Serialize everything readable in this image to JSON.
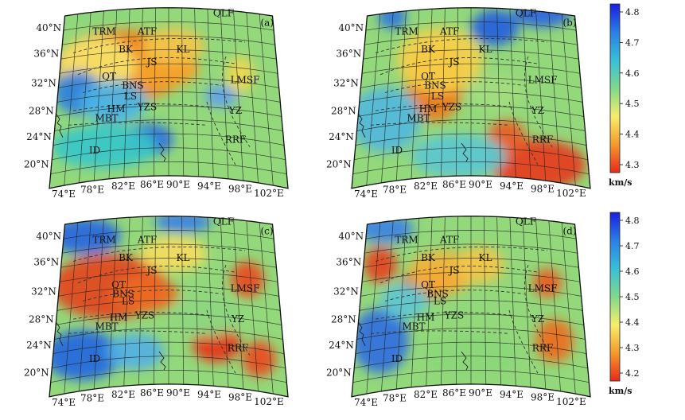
{
  "panels": [
    {
      "id": "a",
      "letter": "(a)",
      "colorbar": "top",
      "regions": [
        {
          "x": 33,
          "y": 33,
          "rx": 18,
          "ry": 14,
          "c": "#e12b1a"
        },
        {
          "x": 31,
          "y": 35,
          "rx": 28,
          "ry": 20,
          "c": "#f28a1b"
        },
        {
          "x": 47,
          "y": 37,
          "rx": 16,
          "ry": 10,
          "c": "#f4a32a"
        },
        {
          "x": 52,
          "y": 24,
          "rx": 13,
          "ry": 10,
          "c": "#f3c64a"
        },
        {
          "x": 20,
          "y": 34,
          "rx": 16,
          "ry": 15,
          "c": "#f7e46a"
        },
        {
          "x": 12,
          "y": 50,
          "rx": 10,
          "ry": 12,
          "c": "#2a7fe0"
        },
        {
          "x": 27,
          "y": 55,
          "rx": 14,
          "ry": 12,
          "c": "#4ab3e8"
        },
        {
          "x": 42,
          "y": 76,
          "rx": 10,
          "ry": 9,
          "c": "#2a6fe0"
        },
        {
          "x": 23,
          "y": 80,
          "rx": 22,
          "ry": 12,
          "c": "#38c7c9"
        },
        {
          "x": 20,
          "y": 4,
          "rx": 15,
          "ry": 7,
          "c": "#8ad77a"
        },
        {
          "x": 72,
          "y": 52,
          "rx": 7,
          "ry": 6,
          "c": "#5f9ff0"
        },
        {
          "x": 80,
          "y": 40,
          "rx": 6,
          "ry": 10,
          "c": "#f1d850"
        }
      ],
      "faults": [
        {
          "label": "TRM",
          "x": 23,
          "y": 16
        },
        {
          "label": "ATF",
          "x": 41,
          "y": 16
        },
        {
          "label": "QLF",
          "x": 73,
          "y": 6
        },
        {
          "label": "BK",
          "x": 32,
          "y": 26
        },
        {
          "label": "KL",
          "x": 56,
          "y": 26
        },
        {
          "label": "JS",
          "x": 43,
          "y": 33
        },
        {
          "label": "QT",
          "x": 25,
          "y": 41
        },
        {
          "label": "BNS",
          "x": 35,
          "y": 46
        },
        {
          "label": "LMSF",
          "x": 82,
          "y": 43
        },
        {
          "label": "LS",
          "x": 34,
          "y": 52
        },
        {
          "label": "YZS",
          "x": 41,
          "y": 58
        },
        {
          "label": "HM",
          "x": 28,
          "y": 59
        },
        {
          "label": "MBT",
          "x": 24,
          "y": 64
        },
        {
          "label": "YZ",
          "x": 78,
          "y": 60
        },
        {
          "label": "RRF",
          "x": 78,
          "y": 76
        },
        {
          "label": "ID",
          "x": 19,
          "y": 82
        }
      ]
    },
    {
      "id": "b",
      "letter": "(b)",
      "colorbar": "top",
      "regions": [
        {
          "x": 35,
          "y": 44,
          "rx": 12,
          "ry": 22,
          "c": "#f07a1a"
        },
        {
          "x": 37,
          "y": 32,
          "rx": 18,
          "ry": 18,
          "c": "#f6d04a"
        },
        {
          "x": 60,
          "y": 14,
          "rx": 10,
          "ry": 10,
          "c": "#2460de"
        },
        {
          "x": 80,
          "y": 6,
          "rx": 12,
          "ry": 8,
          "c": "#2c66df"
        },
        {
          "x": 17,
          "y": 8,
          "rx": 6,
          "ry": 7,
          "c": "#2a76de"
        },
        {
          "x": 78,
          "y": 90,
          "rx": 20,
          "ry": 14,
          "c": "#e6391d"
        },
        {
          "x": 65,
          "y": 75,
          "rx": 8,
          "ry": 10,
          "c": "#ec5b23"
        },
        {
          "x": 14,
          "y": 65,
          "rx": 15,
          "ry": 18,
          "c": "#53b9dc"
        },
        {
          "x": 45,
          "y": 85,
          "rx": 20,
          "ry": 12,
          "c": "#5bc7d0"
        },
        {
          "x": 60,
          "y": 50,
          "rx": 12,
          "ry": 10,
          "c": "#a3dc7e"
        }
      ],
      "faults": [
        {
          "label": "TRM",
          "x": 23,
          "y": 16
        },
        {
          "label": "ATF",
          "x": 41,
          "y": 16
        },
        {
          "label": "QLF",
          "x": 73,
          "y": 6
        },
        {
          "label": "BK",
          "x": 32,
          "y": 26
        },
        {
          "label": "KL",
          "x": 56,
          "y": 26
        },
        {
          "label": "JS",
          "x": 43,
          "y": 33
        },
        {
          "label": "QT",
          "x": 32,
          "y": 41
        },
        {
          "label": "BNS",
          "x": 35,
          "y": 46
        },
        {
          "label": "LMSF",
          "x": 80,
          "y": 43
        },
        {
          "label": "LS",
          "x": 36,
          "y": 52
        },
        {
          "label": "YZS",
          "x": 42,
          "y": 58
        },
        {
          "label": "HM",
          "x": 32,
          "y": 59
        },
        {
          "label": "MBT",
          "x": 28,
          "y": 64
        },
        {
          "label": "YZ",
          "x": 78,
          "y": 60
        },
        {
          "label": "RRF",
          "x": 80,
          "y": 76
        },
        {
          "label": "ID",
          "x": 19,
          "y": 82
        }
      ]
    },
    {
      "id": "c",
      "letter": "(c)",
      "colorbar": "bottom",
      "regions": [
        {
          "x": 25,
          "y": 42,
          "rx": 24,
          "ry": 18,
          "c": "#e44520"
        },
        {
          "x": 40,
          "y": 46,
          "rx": 14,
          "ry": 10,
          "c": "#ee6b1f"
        },
        {
          "x": 83,
          "y": 38,
          "rx": 7,
          "ry": 10,
          "c": "#ea4a1f"
        },
        {
          "x": 70,
          "y": 74,
          "rx": 10,
          "ry": 10,
          "c": "#e7341a"
        },
        {
          "x": 88,
          "y": 82,
          "rx": 7,
          "ry": 10,
          "c": "#ea4a1f"
        },
        {
          "x": 14,
          "y": 80,
          "rx": 16,
          "ry": 14,
          "c": "#2567e0"
        },
        {
          "x": 15,
          "y": 14,
          "rx": 15,
          "ry": 10,
          "c": "#2966e0"
        },
        {
          "x": 56,
          "y": 6,
          "rx": 12,
          "ry": 6,
          "c": "#3d80e6"
        },
        {
          "x": 36,
          "y": 78,
          "rx": 12,
          "ry": 10,
          "c": "#51b0e4"
        },
        {
          "x": 52,
          "y": 24,
          "rx": 14,
          "ry": 10,
          "c": "#f6dc5e"
        },
        {
          "x": 66,
          "y": 58,
          "rx": 14,
          "ry": 12,
          "c": "#8dd680"
        }
      ],
      "faults": [
        {
          "label": "TRM",
          "x": 23,
          "y": 16
        },
        {
          "label": "ATF",
          "x": 41,
          "y": 16
        },
        {
          "label": "QLF",
          "x": 73,
          "y": 6
        },
        {
          "label": "BK",
          "x": 32,
          "y": 26
        },
        {
          "label": "KL",
          "x": 56,
          "y": 26
        },
        {
          "label": "JS",
          "x": 43,
          "y": 33
        },
        {
          "label": "QT",
          "x": 29,
          "y": 41
        },
        {
          "label": "BNS",
          "x": 31,
          "y": 46
        },
        {
          "label": "LMSF",
          "x": 82,
          "y": 43
        },
        {
          "label": "LS",
          "x": 33,
          "y": 50
        },
        {
          "label": "YZS",
          "x": 40,
          "y": 58
        },
        {
          "label": "HM",
          "x": 29,
          "y": 59
        },
        {
          "label": "MBT",
          "x": 24,
          "y": 64
        },
        {
          "label": "YZ",
          "x": 79,
          "y": 60
        },
        {
          "label": "RRF",
          "x": 79,
          "y": 76
        },
        {
          "label": "ID",
          "x": 19,
          "y": 82
        }
      ]
    },
    {
      "id": "d",
      "letter": "(d)",
      "colorbar": "bottom",
      "regions": [
        {
          "x": 12,
          "y": 30,
          "rx": 7,
          "ry": 10,
          "c": "#e6431d"
        },
        {
          "x": 33,
          "y": 40,
          "rx": 12,
          "ry": 8,
          "c": "#e5321a"
        },
        {
          "x": 38,
          "y": 34,
          "rx": 14,
          "ry": 12,
          "c": "#f4b43a"
        },
        {
          "x": 54,
          "y": 30,
          "rx": 10,
          "ry": 10,
          "c": "#f3c64a"
        },
        {
          "x": 82,
          "y": 40,
          "rx": 6,
          "ry": 8,
          "c": "#ec5a21"
        },
        {
          "x": 85,
          "y": 72,
          "rx": 8,
          "ry": 12,
          "c": "#ee6b1f"
        },
        {
          "x": 12,
          "y": 72,
          "rx": 12,
          "ry": 18,
          "c": "#2f6fe0"
        },
        {
          "x": 14,
          "y": 10,
          "rx": 12,
          "ry": 8,
          "c": "#3d82e3"
        },
        {
          "x": 50,
          "y": 80,
          "rx": 20,
          "ry": 12,
          "c": "#8ad77a"
        },
        {
          "x": 22,
          "y": 50,
          "rx": 10,
          "ry": 10,
          "c": "#5fc6d3"
        }
      ],
      "faults": [
        {
          "label": "TRM",
          "x": 23,
          "y": 16
        },
        {
          "label": "ATF",
          "x": 41,
          "y": 16
        },
        {
          "label": "QLF",
          "x": 73,
          "y": 6
        },
        {
          "label": "BK",
          "x": 32,
          "y": 26
        },
        {
          "label": "KL",
          "x": 56,
          "y": 26
        },
        {
          "label": "JS",
          "x": 43,
          "y": 33
        },
        {
          "label": "QT",
          "x": 32,
          "y": 41
        },
        {
          "label": "BNS",
          "x": 36,
          "y": 46
        },
        {
          "label": "LMSF",
          "x": 80,
          "y": 43
        },
        {
          "label": "LS",
          "x": 37,
          "y": 50
        },
        {
          "label": "YZS",
          "x": 43,
          "y": 58
        },
        {
          "label": "HM",
          "x": 31,
          "y": 59
        },
        {
          "label": "MBT",
          "x": 26,
          "y": 64
        },
        {
          "label": "YZ",
          "x": 78,
          "y": 60
        },
        {
          "label": "RRF",
          "x": 80,
          "y": 76
        },
        {
          "label": "ID",
          "x": 19,
          "y": 82
        }
      ]
    }
  ],
  "lat_labels": [
    "40°N",
    "36°N",
    "32°N",
    "28°N",
    "24°N",
    "20°N"
  ],
  "lon_labels": [
    "74°E",
    "78°E",
    "82°E",
    "86°E",
    "90°E",
    "94°E",
    "98°E",
    "102°E"
  ],
  "colorbar_top": {
    "ticks": [
      "4.8",
      "4.7",
      "4.6",
      "4.5",
      "4.4",
      "4.3"
    ],
    "unit": "km/s",
    "stops": [
      "#1a1ee0",
      "#2a7fe6",
      "#36c0d8",
      "#7fd98a",
      "#f6ee6a",
      "#f59a2a",
      "#e8291a"
    ]
  },
  "colorbar_bottom": {
    "ticks": [
      "4.8",
      "4.7",
      "4.6",
      "4.5",
      "4.4",
      "4.3",
      "4.2"
    ],
    "unit": "km/s",
    "stops": [
      "#1a1ee0",
      "#2a7fe6",
      "#36c0d8",
      "#7fd98a",
      "#f6ee6a",
      "#f59a2a",
      "#e8291a"
    ]
  }
}
